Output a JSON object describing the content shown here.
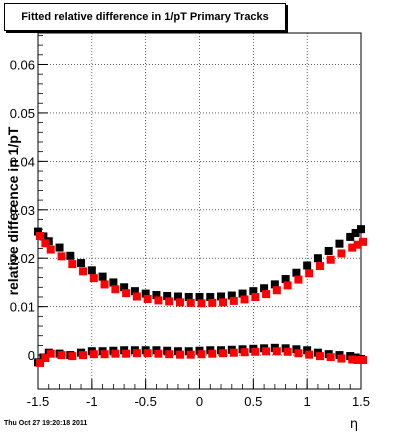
{
  "title": "Fitted relative difference in 1/pT  Primary Tracks",
  "footer_timestamp": "Thu Oct 27 19:20:18 2011",
  "chart_data": {
    "type": "scatter",
    "xlabel": "η",
    "ylabel": "relative difference in 1/pT",
    "xlim": [
      -1.5,
      1.5
    ],
    "ylim": [
      -0.007,
      0.0665
    ],
    "xticks": [
      -1.5,
      -1,
      -0.5,
      0,
      0.5,
      1,
      1.5
    ],
    "xtick_labels": [
      "-1.5",
      "-1",
      "-0.5",
      "0",
      "0.5",
      "1",
      "1.5"
    ],
    "yticks": [
      0,
      0.01,
      0.02,
      0.03,
      0.04,
      0.05,
      0.06
    ],
    "ytick_labels": [
      "0",
      "0.01",
      "0.02",
      "0.03",
      "0.04",
      "0.05",
      "0.06"
    ],
    "grid": true,
    "x": [
      -1.5,
      -1.45,
      -1.4,
      -1.3,
      -1.2,
      -1.1,
      -1.0,
      -0.9,
      -0.8,
      -0.7,
      -0.6,
      -0.5,
      -0.4,
      -0.3,
      -0.2,
      -0.1,
      0.0,
      0.1,
      0.2,
      0.3,
      0.4,
      0.5,
      0.6,
      0.7,
      0.8,
      0.9,
      1.0,
      1.1,
      1.2,
      1.3,
      1.4,
      1.45,
      1.5
    ],
    "series": [
      {
        "color": "#000000",
        "values": [
          0.0255,
          0.0245,
          0.0235,
          0.0222,
          0.0205,
          0.019,
          0.0175,
          0.0162,
          0.015,
          0.014,
          0.0132,
          0.0127,
          0.0124,
          0.0122,
          0.0121,
          0.012,
          0.012,
          0.012,
          0.0121,
          0.0123,
          0.0127,
          0.0132,
          0.0138,
          0.0146,
          0.0157,
          0.017,
          0.0185,
          0.02,
          0.0215,
          0.023,
          0.0244,
          0.0252,
          0.026
        ]
      },
      {
        "color": "#ff0000",
        "values": [
          0.025,
          0.0235,
          0.0222,
          0.0208,
          0.0192,
          0.0177,
          0.0163,
          0.015,
          0.014,
          0.0132,
          0.0125,
          0.012,
          0.0117,
          0.0115,
          0.0113,
          0.0112,
          0.0111,
          0.0112,
          0.0113,
          0.0116,
          0.0119,
          0.0124,
          0.013,
          0.0138,
          0.0148,
          0.016,
          0.0173,
          0.0188,
          0.0201,
          0.0214,
          0.0226,
          0.0232,
          0.0238
        ]
      },
      {
        "color": "#000000",
        "values": [
          -0.0015,
          -0.0005,
          0.0005,
          0.0003,
          0.0,
          0.0005,
          0.0008,
          0.0008,
          0.0009,
          0.001,
          0.001,
          0.001,
          0.001,
          0.0009,
          0.0008,
          0.0008,
          0.0009,
          0.001,
          0.001,
          0.0011,
          0.0012,
          0.0013,
          0.0014,
          0.0015,
          0.0014,
          0.0012,
          0.001,
          0.0005,
          0.0002,
          0.0,
          -0.0002,
          -0.0005,
          -0.0008
        ]
      },
      {
        "color": "#ff0000",
        "values": [
          -0.0012,
          -0.0002,
          0.0007,
          0.0004,
          0.0002,
          0.0004,
          0.0006,
          0.0006,
          0.0007,
          0.0007,
          0.0008,
          0.0008,
          0.0007,
          0.0006,
          0.0005,
          0.0005,
          0.0006,
          0.0007,
          0.0008,
          0.0009,
          0.001,
          0.0011,
          0.0012,
          0.0012,
          0.0011,
          0.0008,
          0.0005,
          0.0002,
          0.0,
          -0.0003,
          -0.0005,
          -0.0006,
          -0.0006
        ]
      }
    ]
  }
}
